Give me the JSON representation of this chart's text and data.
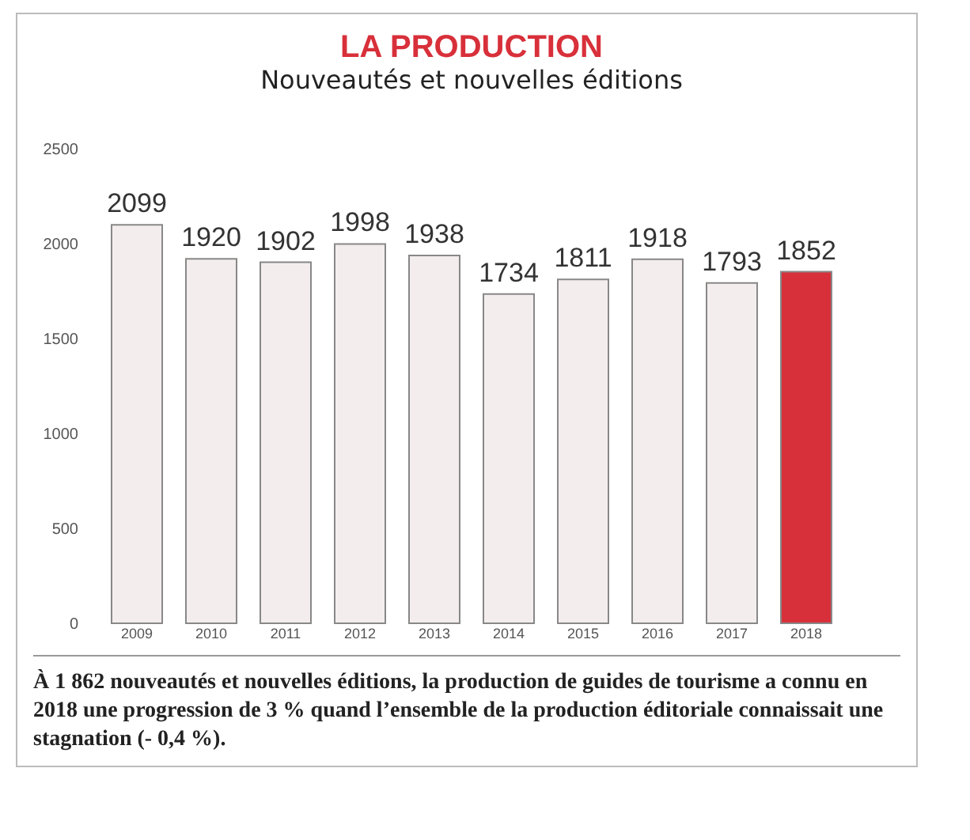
{
  "chart_data": {
    "type": "bar",
    "title": "LA PRODUCTION",
    "subtitle": "Nouveautés et nouvelles éditions",
    "categories": [
      "2009",
      "2010",
      "2011",
      "2012",
      "2013",
      "2014",
      "2015",
      "2016",
      "2017",
      "2018"
    ],
    "values": [
      2099,
      1920,
      1902,
      1998,
      1938,
      1734,
      1811,
      1918,
      1793,
      1852
    ],
    "colors": [
      "#f3eded",
      "#f3eded",
      "#f3eded",
      "#f3eded",
      "#f3eded",
      "#f3eded",
      "#f3eded",
      "#f3eded",
      "#f3eded",
      "#d8303a"
    ],
    "ylim": [
      0,
      2500
    ],
    "yticks": [
      0,
      500,
      1000,
      1500,
      2000,
      2500
    ],
    "grid": false,
    "data_labels": true,
    "annotations": [
      "À 1 862 nouveautés et nouvelles éditions, la production de guides de tourisme a connu en 2018 une progression de 3 % quand l’ensemble de la production éditoriale connaissait une stagnation (- 0,4 %)."
    ]
  }
}
